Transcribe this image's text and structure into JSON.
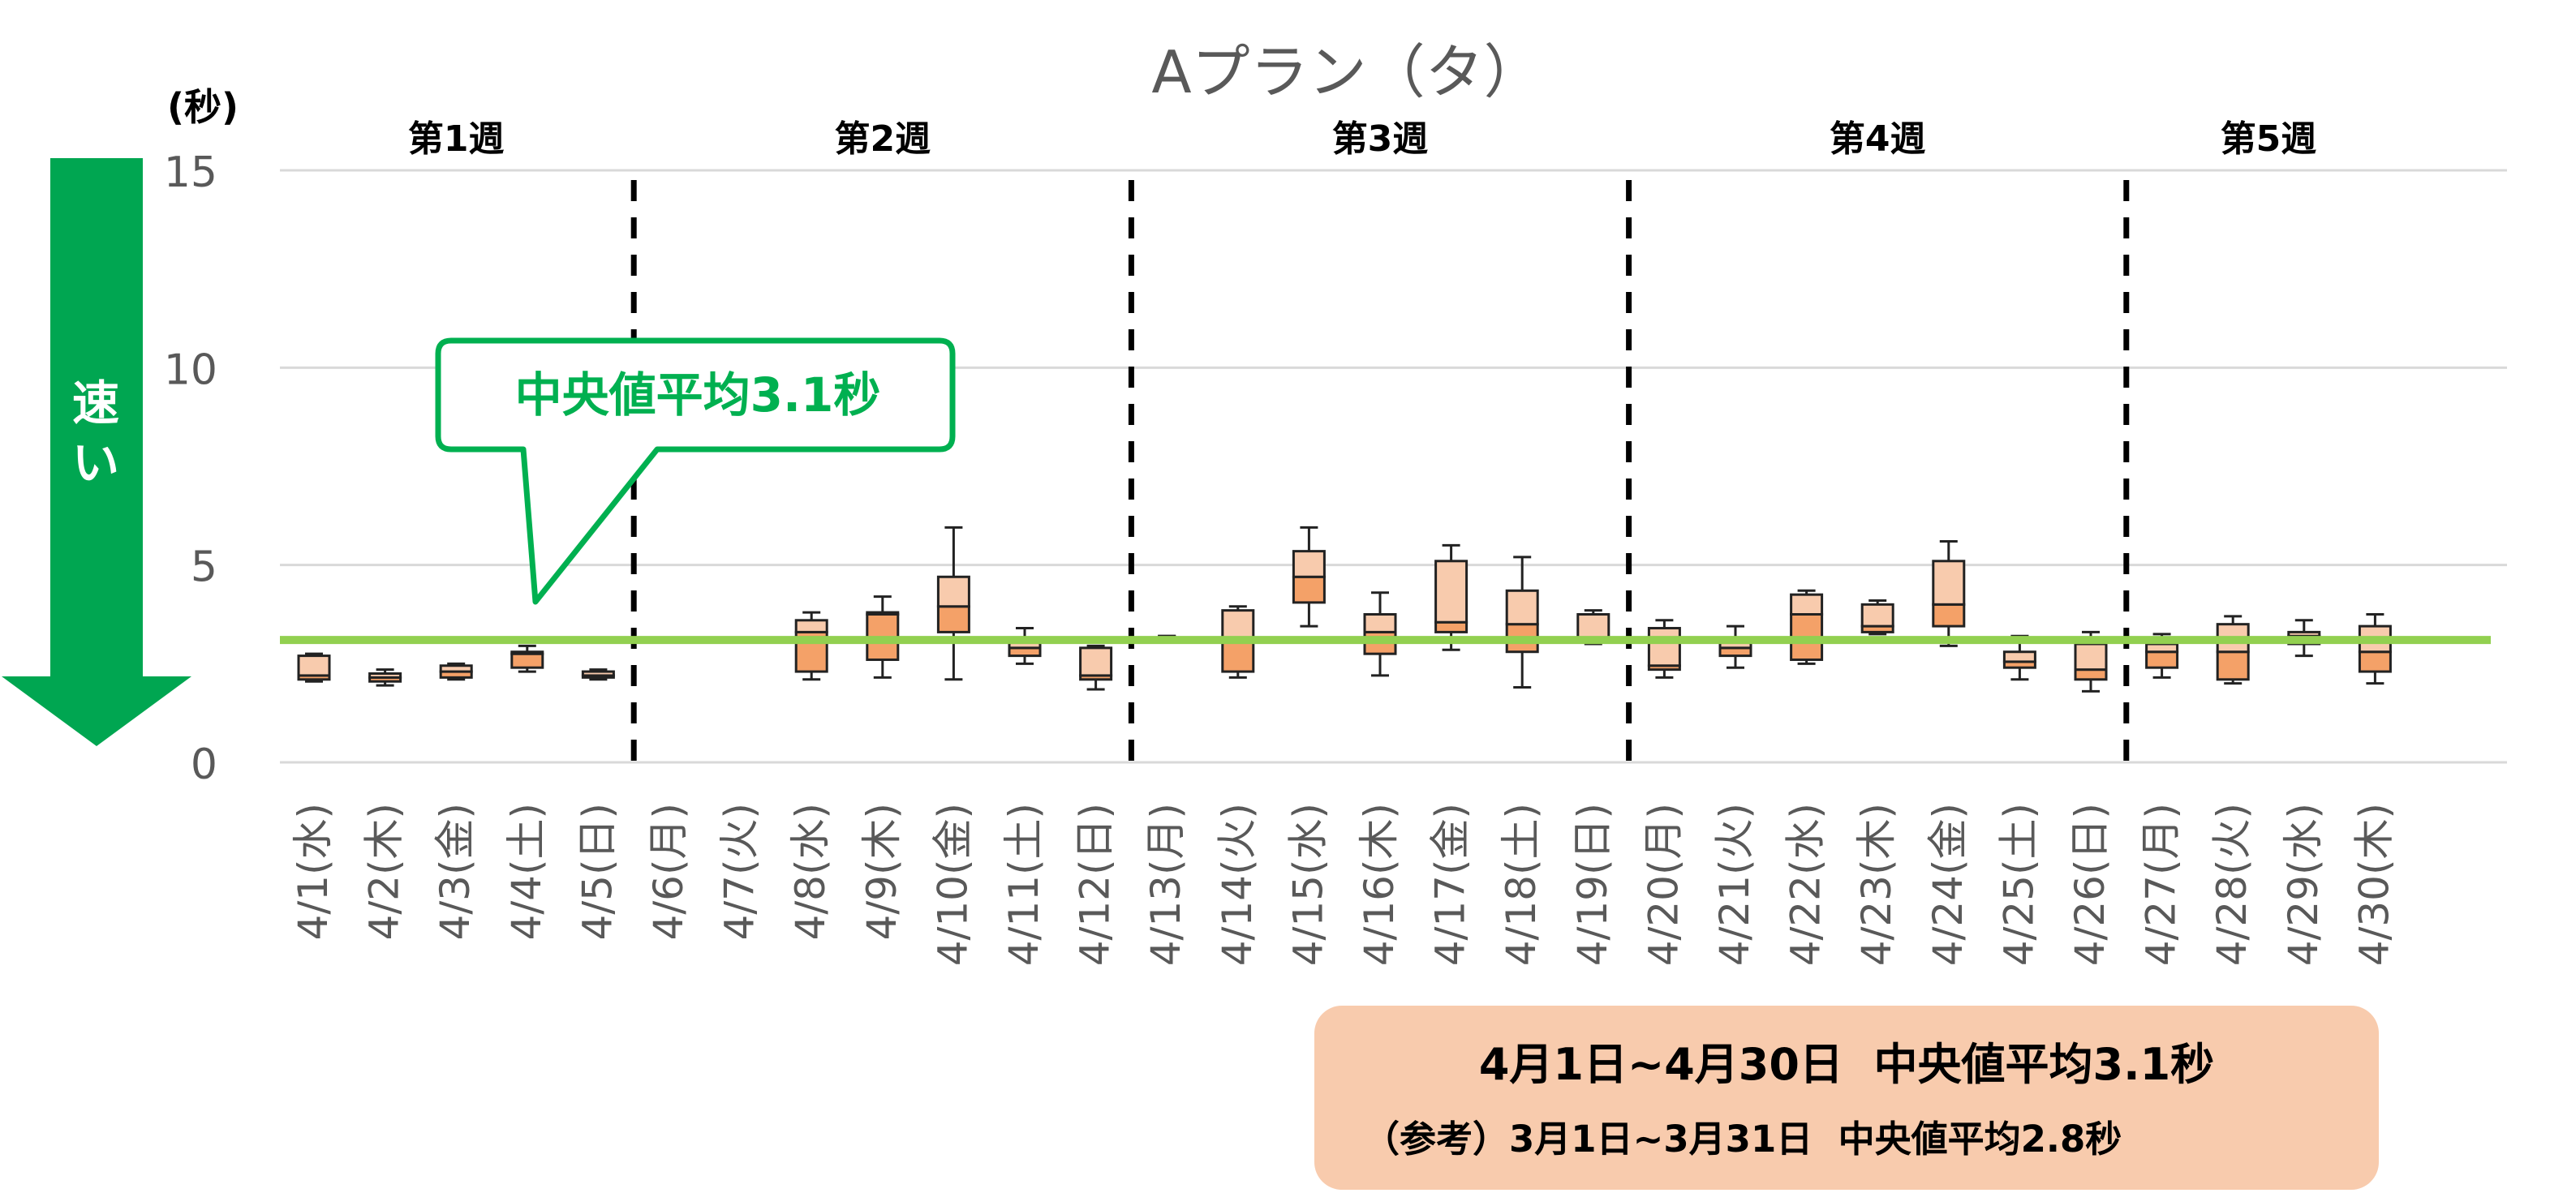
{
  "chart_data": {
    "type": "box",
    "title": "Aプラン（タ）",
    "y_unit_label": "(秒)",
    "y_axis_arrow_label": "速い",
    "ylim": [
      0,
      15
    ],
    "yticks": [
      0,
      5,
      10,
      15
    ],
    "grid": true,
    "reference_line": {
      "value": 3.1,
      "color": "#92D050"
    },
    "callout_text": "中央値平均3.1秒",
    "summary_main": "4月1日~4月30日  中央値平均3.1秒",
    "summary_reference": "（参考）3月1日~3月31日  中央値平均2.8秒",
    "weeks": [
      {
        "label": "第1週",
        "start": 0,
        "end": 4
      },
      {
        "label": "第2週",
        "start": 5,
        "end": 11
      },
      {
        "label": "第3週",
        "start": 12,
        "end": 18
      },
      {
        "label": "第4週",
        "start": 19,
        "end": 25
      },
      {
        "label": "第5週",
        "start": 26,
        "end": 29
      }
    ],
    "categories": [
      "4/1(水)",
      "4/2(木)",
      "4/3(金)",
      "4/4(土)",
      "4/5(日)",
      "4/6(月)",
      "4/7(火)",
      "4/8(水)",
      "4/9(木)",
      "4/10(金)",
      "4/11(土)",
      "4/12(日)",
      "4/13(月)",
      "4/14(火)",
      "4/15(水)",
      "4/16(木)",
      "4/17(金)",
      "4/18(土)",
      "4/19(日)",
      "4/20(月)",
      "4/21(火)",
      "4/22(水)",
      "4/23(木)",
      "4/24(金)",
      "4/25(土)",
      "4/26(日)",
      "4/27(月)",
      "4/28(火)",
      "4/29(水)",
      "4/30(木)"
    ],
    "boxes": [
      {
        "min": 2.05,
        "q1": 2.1,
        "median": 2.2,
        "q3": 2.7,
        "max": 2.75
      },
      {
        "min": 1.95,
        "q1": 2.05,
        "median": 2.15,
        "q3": 2.25,
        "max": 2.35
      },
      {
        "min": 2.1,
        "q1": 2.15,
        "median": 2.3,
        "q3": 2.45,
        "max": 2.5
      },
      {
        "min": 2.3,
        "q1": 2.4,
        "median": 2.75,
        "q3": 2.8,
        "max": 2.95
      },
      {
        "min": 2.1,
        "q1": 2.15,
        "median": 2.2,
        "q3": 2.3,
        "max": 2.35
      },
      null,
      null,
      {
        "min": 2.1,
        "q1": 2.3,
        "median": 3.3,
        "q3": 3.6,
        "max": 3.8
      },
      {
        "min": 2.15,
        "q1": 2.6,
        "median": 3.75,
        "q3": 3.8,
        "max": 4.2
      },
      {
        "min": 2.1,
        "q1": 3.3,
        "median": 3.95,
        "q3": 4.7,
        "max": 5.95
      },
      {
        "min": 2.5,
        "q1": 2.7,
        "median": 2.9,
        "q3": 3.1,
        "max": 3.4
      },
      {
        "min": 1.85,
        "q1": 2.1,
        "median": 2.2,
        "q3": 2.9,
        "max": 2.95
      },
      {
        "min": 3.2,
        "q1": 3.2,
        "median": 3.2,
        "q3": 3.2,
        "max": 3.2
      },
      {
        "min": 2.15,
        "q1": 2.3,
        "median": 3.1,
        "q3": 3.85,
        "max": 3.95
      },
      {
        "min": 3.45,
        "q1": 4.05,
        "median": 4.7,
        "q3": 5.35,
        "max": 5.95
      },
      {
        "min": 2.2,
        "q1": 2.75,
        "median": 3.3,
        "q3": 3.75,
        "max": 4.3
      },
      {
        "min": 2.85,
        "q1": 3.3,
        "median": 3.55,
        "q3": 5.1,
        "max": 5.5
      },
      {
        "min": 1.9,
        "q1": 2.8,
        "median": 3.5,
        "q3": 4.35,
        "max": 5.2
      },
      {
        "min": 3.0,
        "q1": 3.05,
        "median": 3.1,
        "q3": 3.75,
        "max": 3.85
      },
      {
        "min": 2.15,
        "q1": 2.35,
        "median": 2.45,
        "q3": 3.4,
        "max": 3.6
      },
      {
        "min": 2.4,
        "q1": 2.7,
        "median": 2.9,
        "q3": 3.1,
        "max": 3.45
      },
      {
        "min": 2.5,
        "q1": 2.6,
        "median": 3.75,
        "q3": 4.25,
        "max": 4.35
      },
      {
        "min": 3.25,
        "q1": 3.3,
        "median": 3.45,
        "q3": 4.0,
        "max": 4.1
      },
      {
        "min": 2.95,
        "q1": 3.45,
        "median": 4.0,
        "q3": 5.1,
        "max": 5.6
      },
      {
        "min": 2.1,
        "q1": 2.4,
        "median": 2.55,
        "q3": 2.8,
        "max": 3.2
      },
      {
        "min": 1.8,
        "q1": 2.1,
        "median": 2.35,
        "q3": 3.0,
        "max": 3.3
      },
      {
        "min": 2.15,
        "q1": 2.4,
        "median": 2.8,
        "q3": 3.0,
        "max": 3.25
      },
      {
        "min": 2.0,
        "q1": 2.1,
        "median": 2.8,
        "q3": 3.5,
        "max": 3.7
      },
      {
        "min": 2.7,
        "q1": 3.0,
        "median": 3.2,
        "q3": 3.3,
        "max": 3.6
      },
      {
        "min": 2.0,
        "q1": 2.3,
        "median": 2.8,
        "q3": 3.45,
        "max": 3.75
      }
    ],
    "colors": {
      "box_upper": "#F8CBAD",
      "box_lower": "#F4A168",
      "box_stroke": "#222222",
      "grid": "#D9D9D9",
      "axis_text": "#595959",
      "arrow": "#00A651",
      "callout_border": "#00B050",
      "summary_bg": "#F8CBAD"
    }
  }
}
